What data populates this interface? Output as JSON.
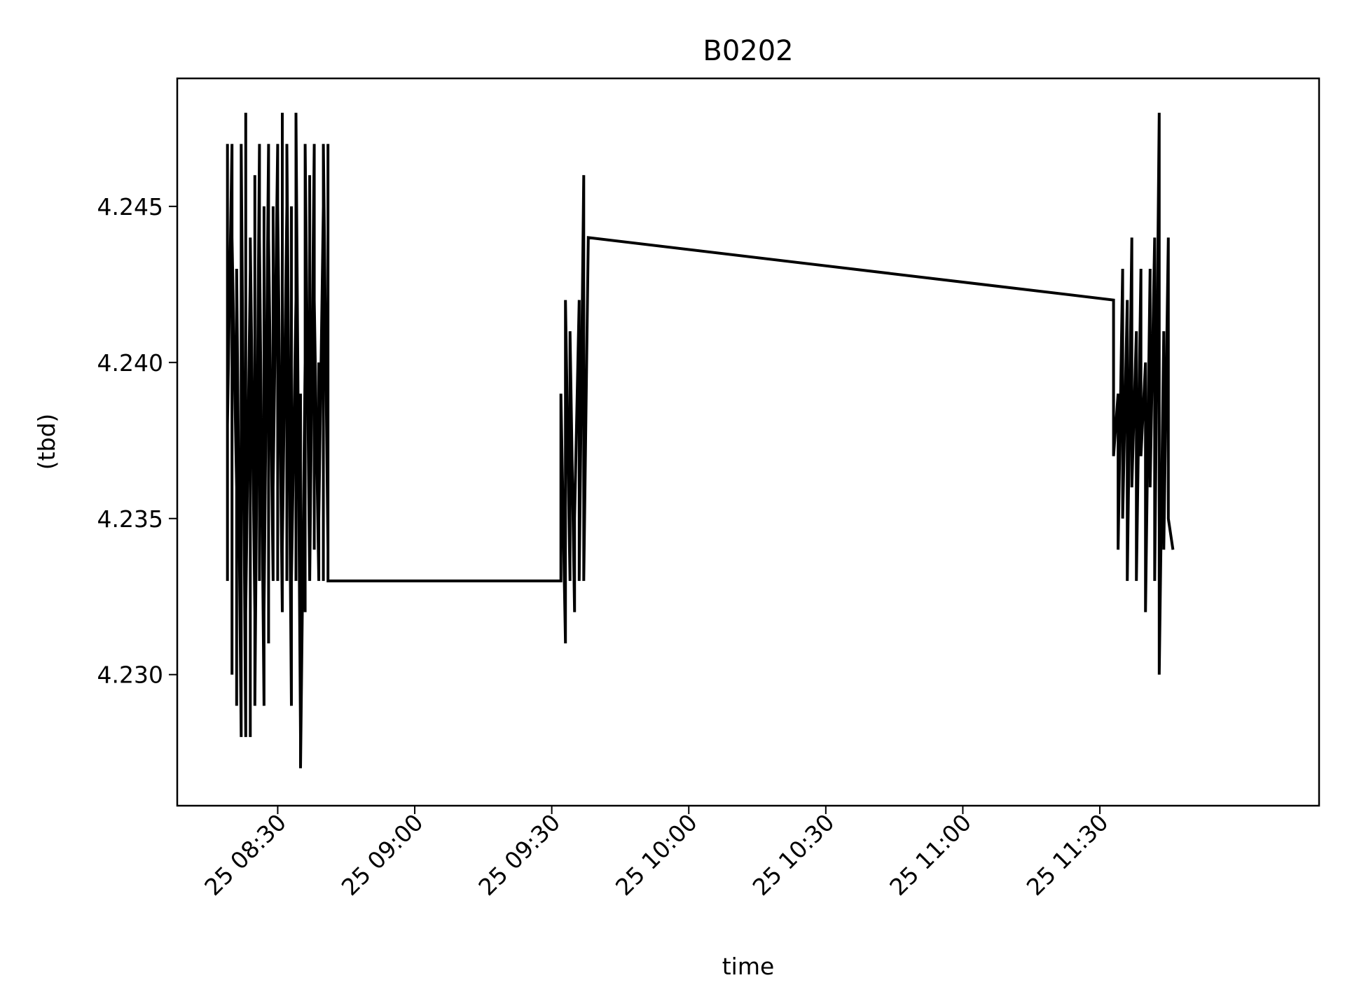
{
  "chart_data": {
    "type": "line",
    "title": "B0202",
    "xlabel": "time",
    "ylabel": "(tbd)",
    "x_tick_labels": [
      "25 08:30",
      "25 09:00",
      "25 09:30",
      "25 10:00",
      "25 10:30",
      "25 11:00",
      "25 11:30"
    ],
    "x_ticks": [
      "08:30",
      "09:00",
      "09:30",
      "10:00",
      "10:30",
      "11:00",
      "11:30"
    ],
    "xlim": [
      "08:08",
      "12:18"
    ],
    "y_tick_labels": [
      "4.230",
      "4.235",
      "4.240",
      "4.245"
    ],
    "y_ticks": [
      4.23,
      4.235,
      4.24,
      4.245
    ],
    "ylim": [
      4.2258,
      4.2491
    ],
    "grid": false,
    "line_color": "#000000",
    "series": [
      {
        "x": [
          "08:19",
          "08:19",
          "08:19",
          "08:20",
          "08:20",
          "08:20",
          "08:21",
          "08:21",
          "08:21",
          "08:22",
          "08:22",
          "08:22",
          "08:23",
          "08:23",
          "08:23",
          "08:24",
          "08:24",
          "08:24",
          "08:25",
          "08:25",
          "08:25",
          "08:26",
          "08:26",
          "08:26",
          "08:27",
          "08:27",
          "08:27",
          "08:28",
          "08:28",
          "08:28",
          "08:29",
          "08:29",
          "08:29",
          "08:30",
          "08:30",
          "08:30",
          "08:31",
          "08:31",
          "08:31",
          "08:32",
          "08:32",
          "08:32",
          "08:33",
          "08:33",
          "08:33",
          "08:34",
          "08:34",
          "08:34",
          "08:35",
          "08:35",
          "08:35",
          "08:36",
          "08:36",
          "08:36",
          "08:37",
          "08:37",
          "08:37",
          "08:38",
          "08:38",
          "08:38",
          "08:39",
          "08:39",
          "08:39",
          "08:40",
          "08:40",
          "08:40",
          "08:41",
          "08:41",
          "08:41",
          "09:32",
          "09:32",
          "09:33",
          "09:33",
          "09:34",
          "09:34",
          "09:35",
          "09:35",
          "09:36",
          "09:36",
          "09:37",
          "09:37",
          "09:38",
          "11:33",
          "11:33",
          "11:34",
          "11:34",
          "11:35",
          "11:35",
          "11:36",
          "11:36",
          "11:37",
          "11:37",
          "11:38",
          "11:38",
          "11:39",
          "11:39",
          "11:40",
          "11:40",
          "11:41",
          "11:41",
          "11:42",
          "11:42",
          "11:43",
          "11:43",
          "11:44",
          "11:44",
          "11:45",
          "11:45",
          "11:46"
        ],
        "values": [
          4.233,
          4.247,
          4.238,
          4.247,
          4.23,
          4.244,
          4.236,
          4.229,
          4.243,
          4.228,
          4.235,
          4.247,
          4.228,
          4.248,
          4.232,
          4.243,
          4.228,
          4.244,
          4.232,
          4.246,
          4.229,
          4.247,
          4.233,
          4.244,
          4.229,
          4.245,
          4.232,
          4.247,
          4.231,
          4.244,
          4.233,
          4.245,
          4.236,
          4.247,
          4.233,
          4.245,
          4.232,
          4.248,
          4.234,
          4.245,
          4.233,
          4.247,
          4.229,
          4.245,
          4.233,
          4.242,
          4.233,
          4.248,
          4.228,
          4.239,
          4.227,
          4.24,
          4.232,
          4.247,
          4.233,
          4.246,
          4.233,
          4.247,
          4.234,
          4.242,
          4.233,
          4.24,
          4.235,
          4.245,
          4.233,
          4.247,
          4.234,
          4.247,
          4.233,
          4.233,
          4.239,
          4.231,
          4.242,
          4.233,
          4.241,
          4.232,
          4.235,
          4.242,
          4.233,
          4.246,
          4.233,
          4.244,
          4.242,
          4.237,
          4.239,
          4.234,
          4.243,
          4.235,
          4.242,
          4.233,
          4.244,
          4.236,
          4.241,
          4.233,
          4.243,
          4.237,
          4.24,
          4.232,
          4.243,
          4.236,
          4.244,
          4.233,
          4.248,
          4.23,
          4.241,
          4.234,
          4.244,
          4.235,
          4.234
        ]
      }
    ]
  }
}
